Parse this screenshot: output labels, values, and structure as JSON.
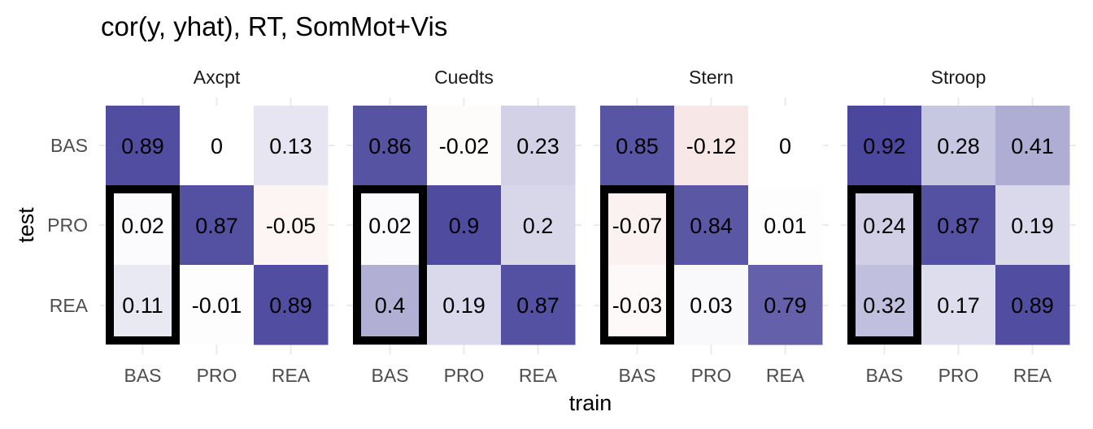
{
  "chart_data": {
    "type": "heatmap",
    "title": "cor(y, yhat), RT, SomMot+Vis",
    "xlabel": "train",
    "ylabel": "test",
    "x_categories": [
      "BAS",
      "PRO",
      "REA"
    ],
    "y_categories": [
      "BAS",
      "PRO",
      "REA"
    ],
    "value_range": [
      -1,
      1
    ],
    "colors": {
      "high": "#3b3794",
      "mid": "#ffffff",
      "low": "#c0392b",
      "highlight_border": "#000000"
    },
    "highlight": "outlined box around train = BAS, test = PRO and REA in every panel",
    "panels": [
      {
        "name": "Axcpt",
        "values": [
          [
            0.89,
            0,
            0.13
          ],
          [
            0.02,
            0.87,
            -0.05
          ],
          [
            0.11,
            -0.01,
            0.89
          ]
        ],
        "labels": [
          [
            "0.89",
            "0",
            "0.13"
          ],
          [
            "0.02",
            "0.87",
            "-0.05"
          ],
          [
            "0.11",
            "-0.01",
            "0.89"
          ]
        ]
      },
      {
        "name": "Cuedts",
        "values": [
          [
            0.86,
            -0.02,
            0.23
          ],
          [
            0.02,
            0.9,
            0.2
          ],
          [
            0.4,
            0.19,
            0.87
          ]
        ],
        "labels": [
          [
            "0.86",
            "-0.02",
            "0.23"
          ],
          [
            "0.02",
            "0.9",
            "0.2"
          ],
          [
            "0.4",
            "0.19",
            "0.87"
          ]
        ]
      },
      {
        "name": "Stern",
        "values": [
          [
            0.85,
            -0.12,
            0
          ],
          [
            -0.07,
            0.84,
            0.01
          ],
          [
            -0.03,
            0.03,
            0.79
          ]
        ],
        "labels": [
          [
            "0.85",
            "-0.12",
            "0"
          ],
          [
            "-0.07",
            "0.84",
            "0.01"
          ],
          [
            "-0.03",
            "0.03",
            "0.79"
          ]
        ]
      },
      {
        "name": "Stroop",
        "values": [
          [
            0.92,
            0.28,
            0.41
          ],
          [
            0.24,
            0.87,
            0.19
          ],
          [
            0.32,
            0.17,
            0.89
          ]
        ],
        "labels": [
          [
            "0.92",
            "0.28",
            "0.41"
          ],
          [
            "0.24",
            "0.87",
            "0.19"
          ],
          [
            "0.32",
            "0.17",
            "0.89"
          ]
        ]
      }
    ]
  }
}
